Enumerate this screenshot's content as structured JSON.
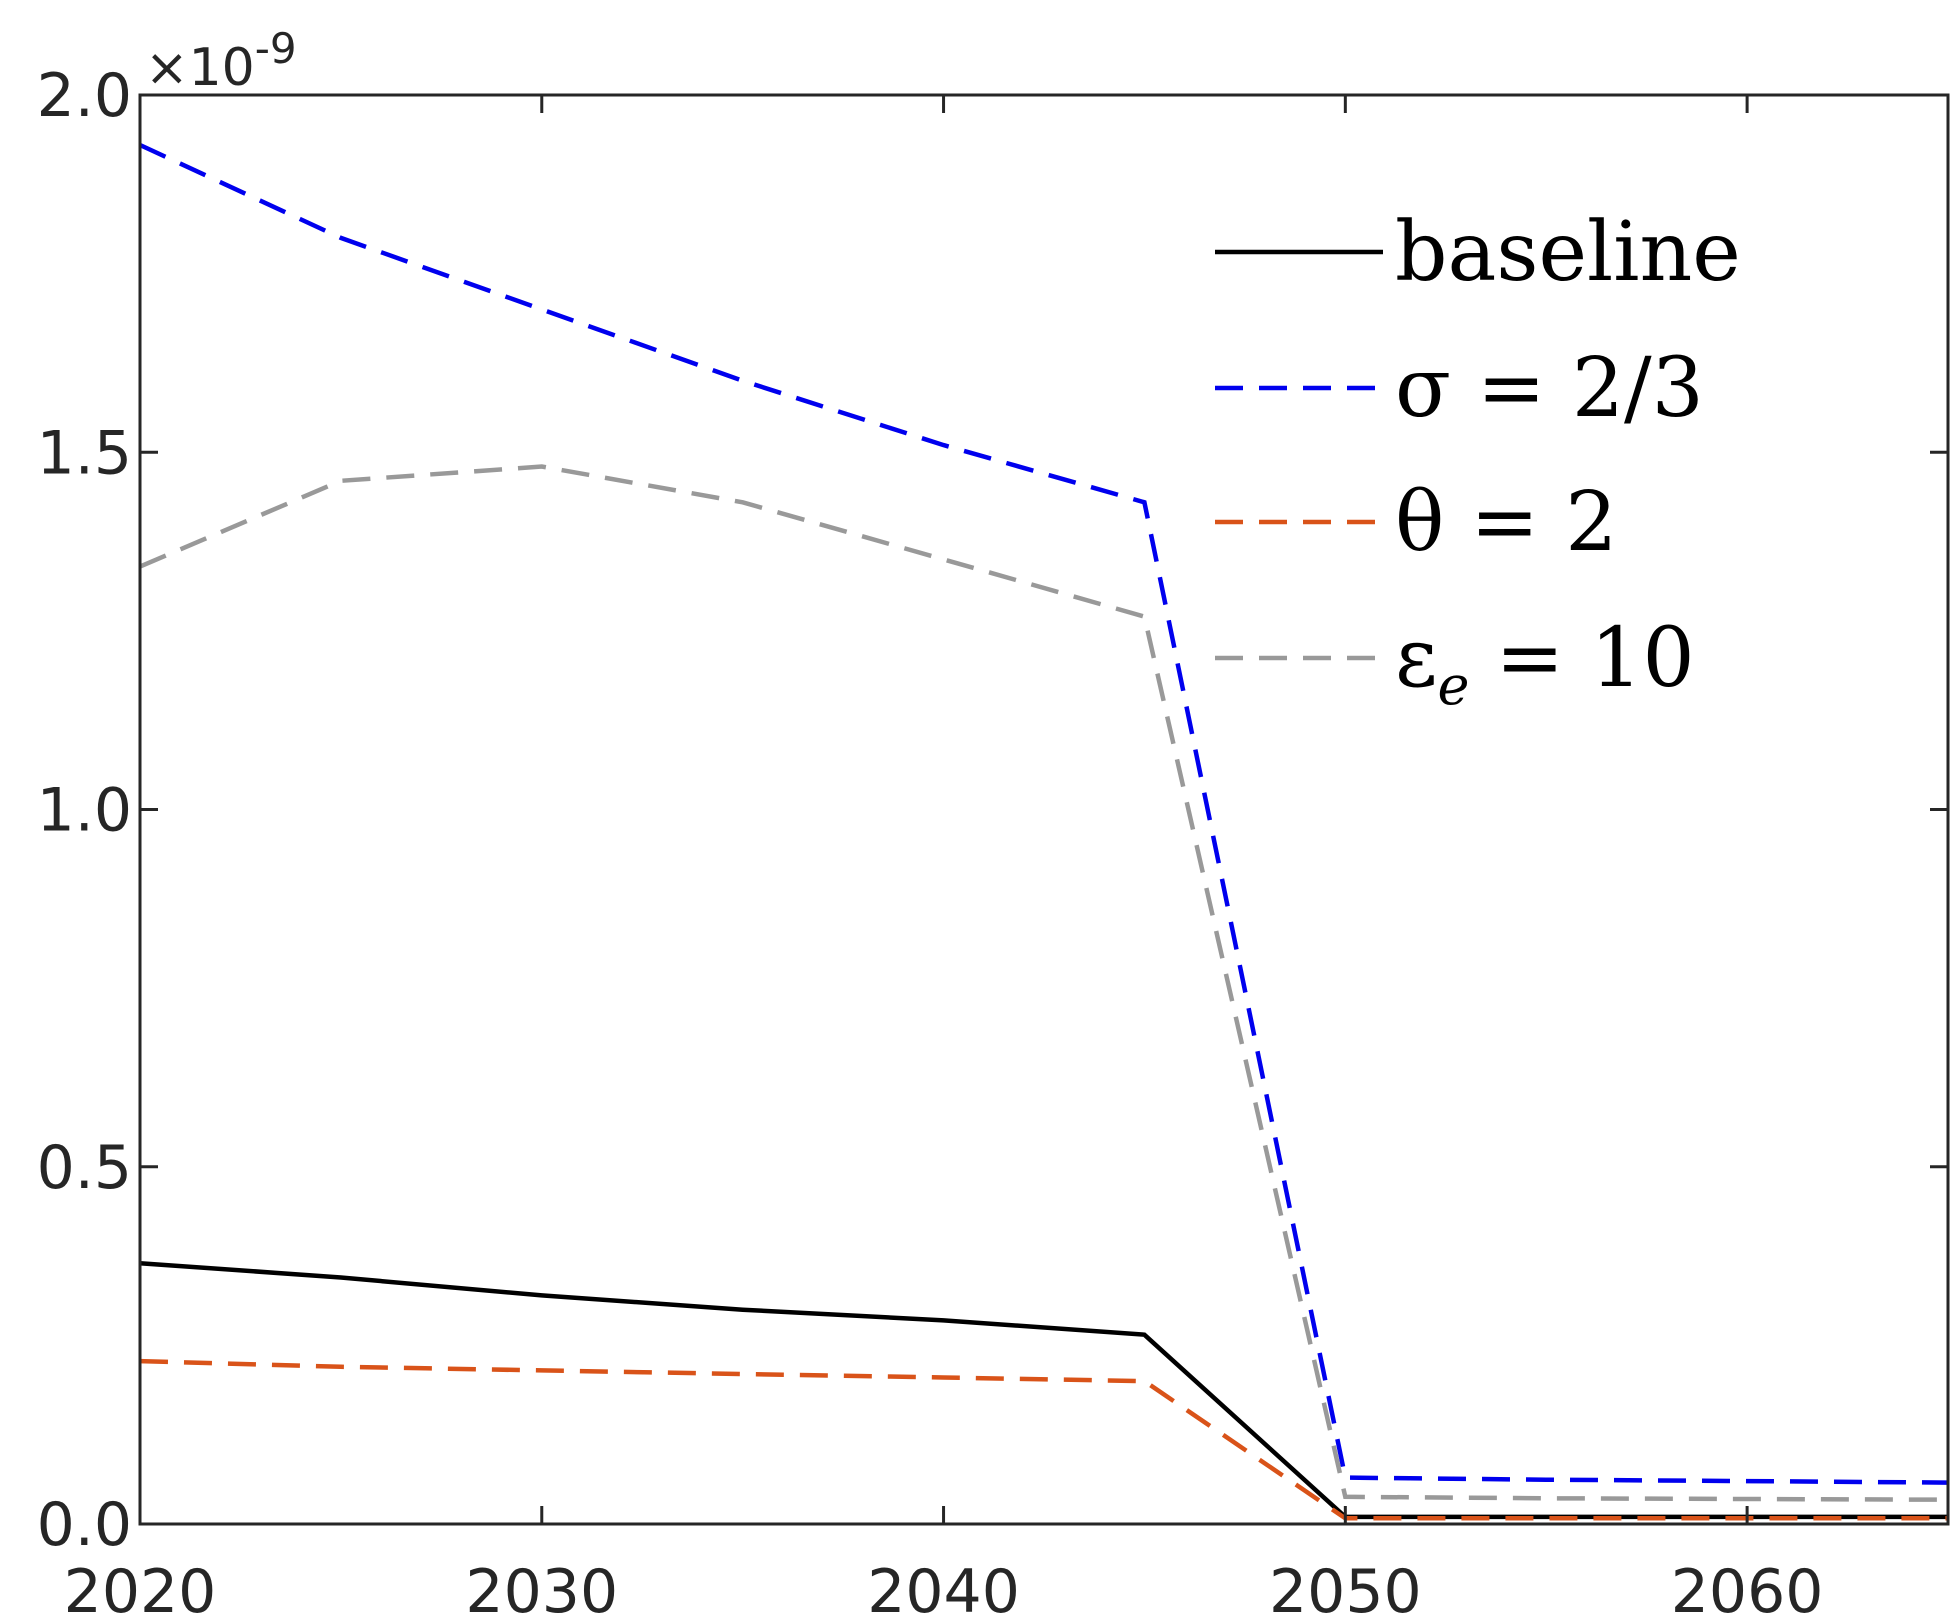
{
  "chart_data": {
    "type": "line",
    "title": "",
    "xlabel": "",
    "ylabel": "",
    "xlim": [
      2020,
      2065
    ],
    "ylim": [
      0,
      2.0
    ],
    "y_exponent_label": "×10",
    "y_exponent_power": "-9",
    "x_ticks": [
      2020,
      2030,
      2040,
      2050,
      2060
    ],
    "x_tick_labels": [
      "2020",
      "2030",
      "2040",
      "2050",
      "2060"
    ],
    "y_ticks": [
      0,
      0.5,
      1.0,
      1.5,
      2.0
    ],
    "y_tick_labels": [
      "0.0",
      "0.5",
      "1.0",
      "1.5",
      "2.0"
    ],
    "grid": false,
    "legend_position": "top-right",
    "series": [
      {
        "name": "baseline",
        "label_main": "baseline",
        "label_sub": "",
        "label_rest": "",
        "color": "#000000",
        "dash": "solid",
        "x": [
          2020,
          2025,
          2030,
          2035,
          2040,
          2045,
          2050,
          2055,
          2060,
          2065
        ],
        "y": [
          0.365,
          0.345,
          0.32,
          0.3,
          0.285,
          0.265,
          0.01,
          0.01,
          0.01,
          0.01
        ]
      },
      {
        "name": "σ = 2/3",
        "label_main": "σ = 2/3",
        "label_sub": "",
        "label_rest": "",
        "color": "#0000ee",
        "dash": "dashed",
        "x": [
          2020,
          2025,
          2030,
          2035,
          2040,
          2045,
          2050,
          2055,
          2060,
          2065
        ],
        "y": [
          1.93,
          1.8,
          1.7,
          1.6,
          1.51,
          1.43,
          0.065,
          0.062,
          0.06,
          0.058
        ]
      },
      {
        "name": "θ = 2",
        "label_main": "θ = 2",
        "label_sub": "",
        "label_rest": "",
        "color": "#d95319",
        "dash": "dashed",
        "x": [
          2020,
          2025,
          2030,
          2035,
          2040,
          2045,
          2050,
          2055,
          2060,
          2065
        ],
        "y": [
          0.228,
          0.22,
          0.215,
          0.21,
          0.205,
          0.2,
          0.008,
          0.008,
          0.008,
          0.008
        ]
      },
      {
        "name": "ε_e = 10",
        "label_main": "ε",
        "label_sub": "e",
        "label_rest": " = 10",
        "color": "#999999",
        "dash": "dashed",
        "x": [
          2020,
          2025,
          2030,
          2035,
          2040,
          2045,
          2050,
          2055,
          2060,
          2065
        ],
        "y": [
          1.34,
          1.46,
          1.48,
          1.43,
          1.35,
          1.27,
          0.038,
          0.036,
          0.035,
          0.034
        ]
      }
    ]
  }
}
